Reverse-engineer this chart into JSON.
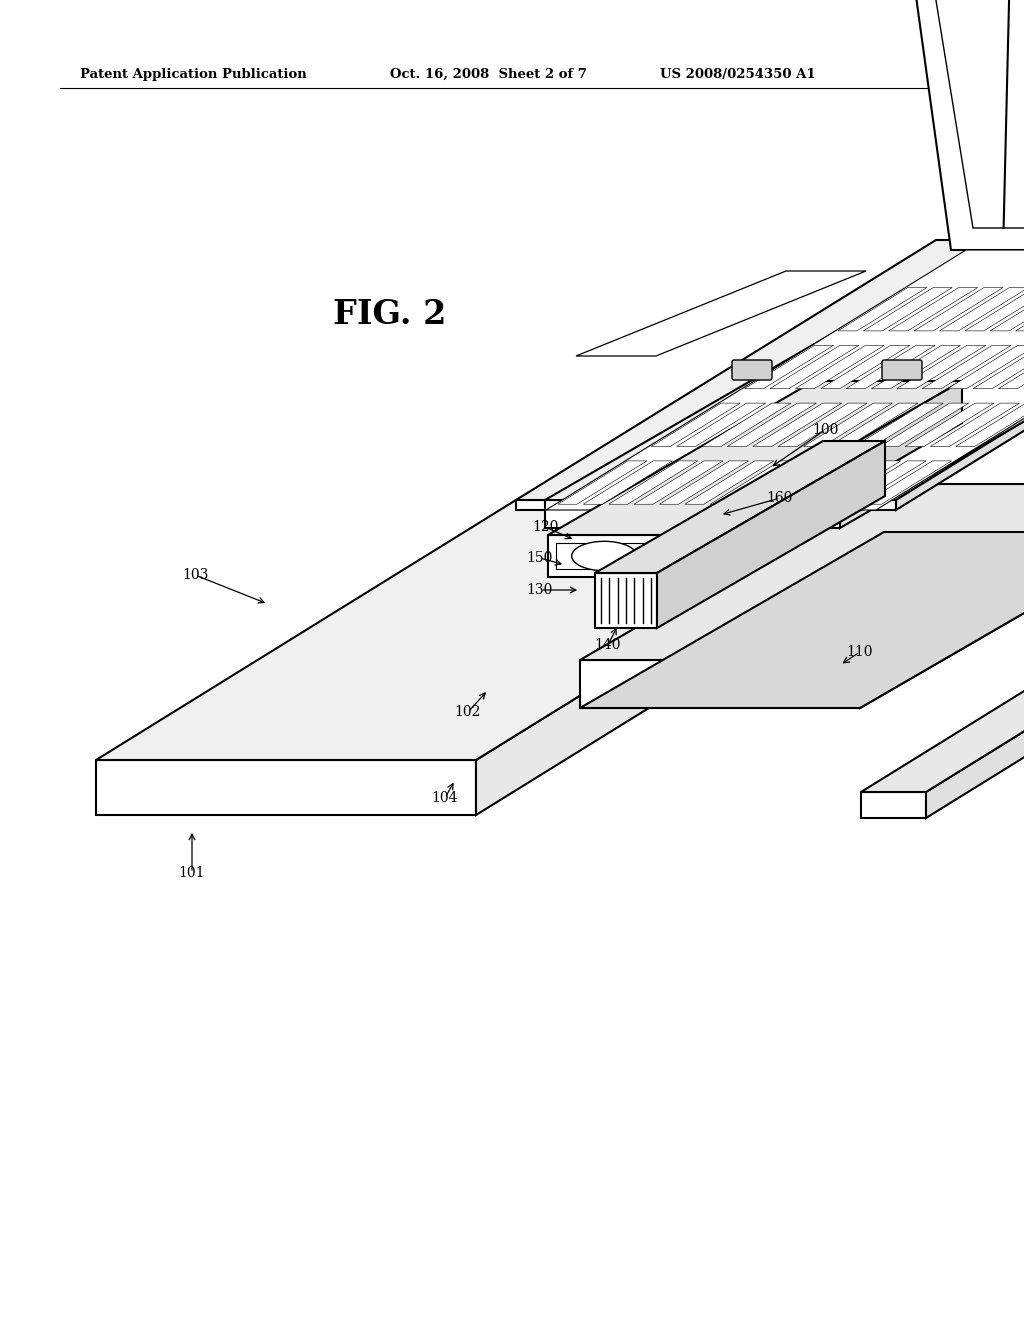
{
  "title": "FIG. 2",
  "header_left": "Patent Application Publication",
  "header_center": "Oct. 16, 2008  Sheet 2 of 7",
  "header_right": "US 2008/0254350 A1",
  "background_color": "#ffffff",
  "text_color": "#000000",
  "line_color": "#000000",
  "figsize": [
    10.24,
    13.2
  ],
  "dpi": 100
}
